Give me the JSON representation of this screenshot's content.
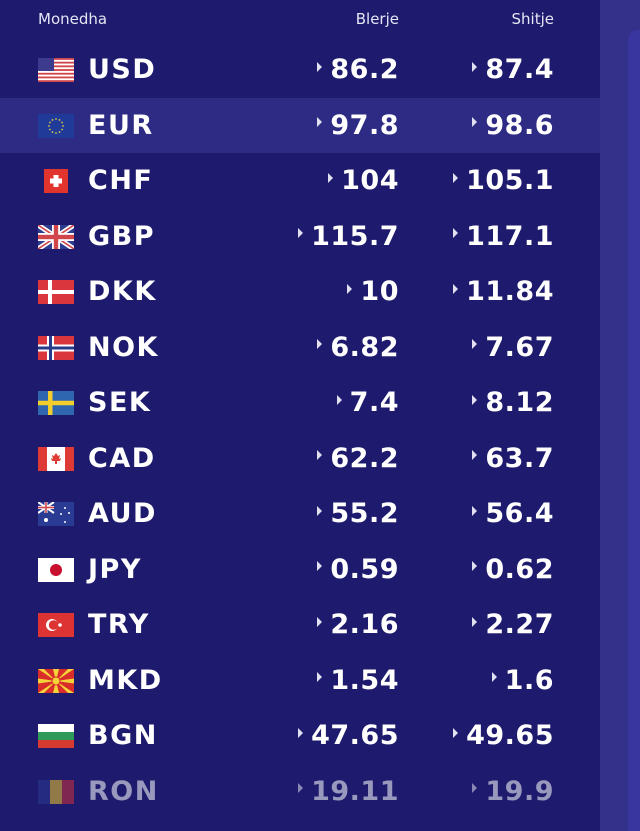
{
  "header": {
    "currency": "Monedha",
    "buy": "Blerje",
    "sell": "Shitje"
  },
  "colors": {
    "background": "#1e1a6e",
    "highlight_row": "#2e2b85",
    "side_strip": "#34318a"
  },
  "rows": [
    {
      "code": "USD",
      "flag": "us-flag",
      "buy": "86.2",
      "sell": "87.4"
    },
    {
      "code": "EUR",
      "flag": "eu-flag",
      "buy": "97.8",
      "sell": "98.6",
      "highlighted": true
    },
    {
      "code": "CHF",
      "flag": "ch-flag",
      "buy": "104",
      "sell": "105.1"
    },
    {
      "code": "GBP",
      "flag": "gb-flag",
      "buy": "115.7",
      "sell": "117.1"
    },
    {
      "code": "DKK",
      "flag": "dk-flag",
      "buy": "10",
      "sell": "11.84"
    },
    {
      "code": "NOK",
      "flag": "no-flag",
      "buy": "6.82",
      "sell": "7.67"
    },
    {
      "code": "SEK",
      "flag": "se-flag",
      "buy": "7.4",
      "sell": "8.12"
    },
    {
      "code": "CAD",
      "flag": "ca-flag",
      "buy": "62.2",
      "sell": "63.7"
    },
    {
      "code": "AUD",
      "flag": "au-flag",
      "buy": "55.2",
      "sell": "56.4"
    },
    {
      "code": "JPY",
      "flag": "jp-flag",
      "buy": "0.59",
      "sell": "0.62"
    },
    {
      "code": "TRY",
      "flag": "tr-flag",
      "buy": "2.16",
      "sell": "2.27"
    },
    {
      "code": "MKD",
      "flag": "mk-flag",
      "buy": "1.54",
      "sell": "1.6"
    },
    {
      "code": "BGN",
      "flag": "bg-flag",
      "buy": "47.65",
      "sell": "49.65"
    },
    {
      "code": "RON",
      "flag": "ro-flag",
      "buy": "19.11",
      "sell": "19.9",
      "faded": true
    }
  ]
}
